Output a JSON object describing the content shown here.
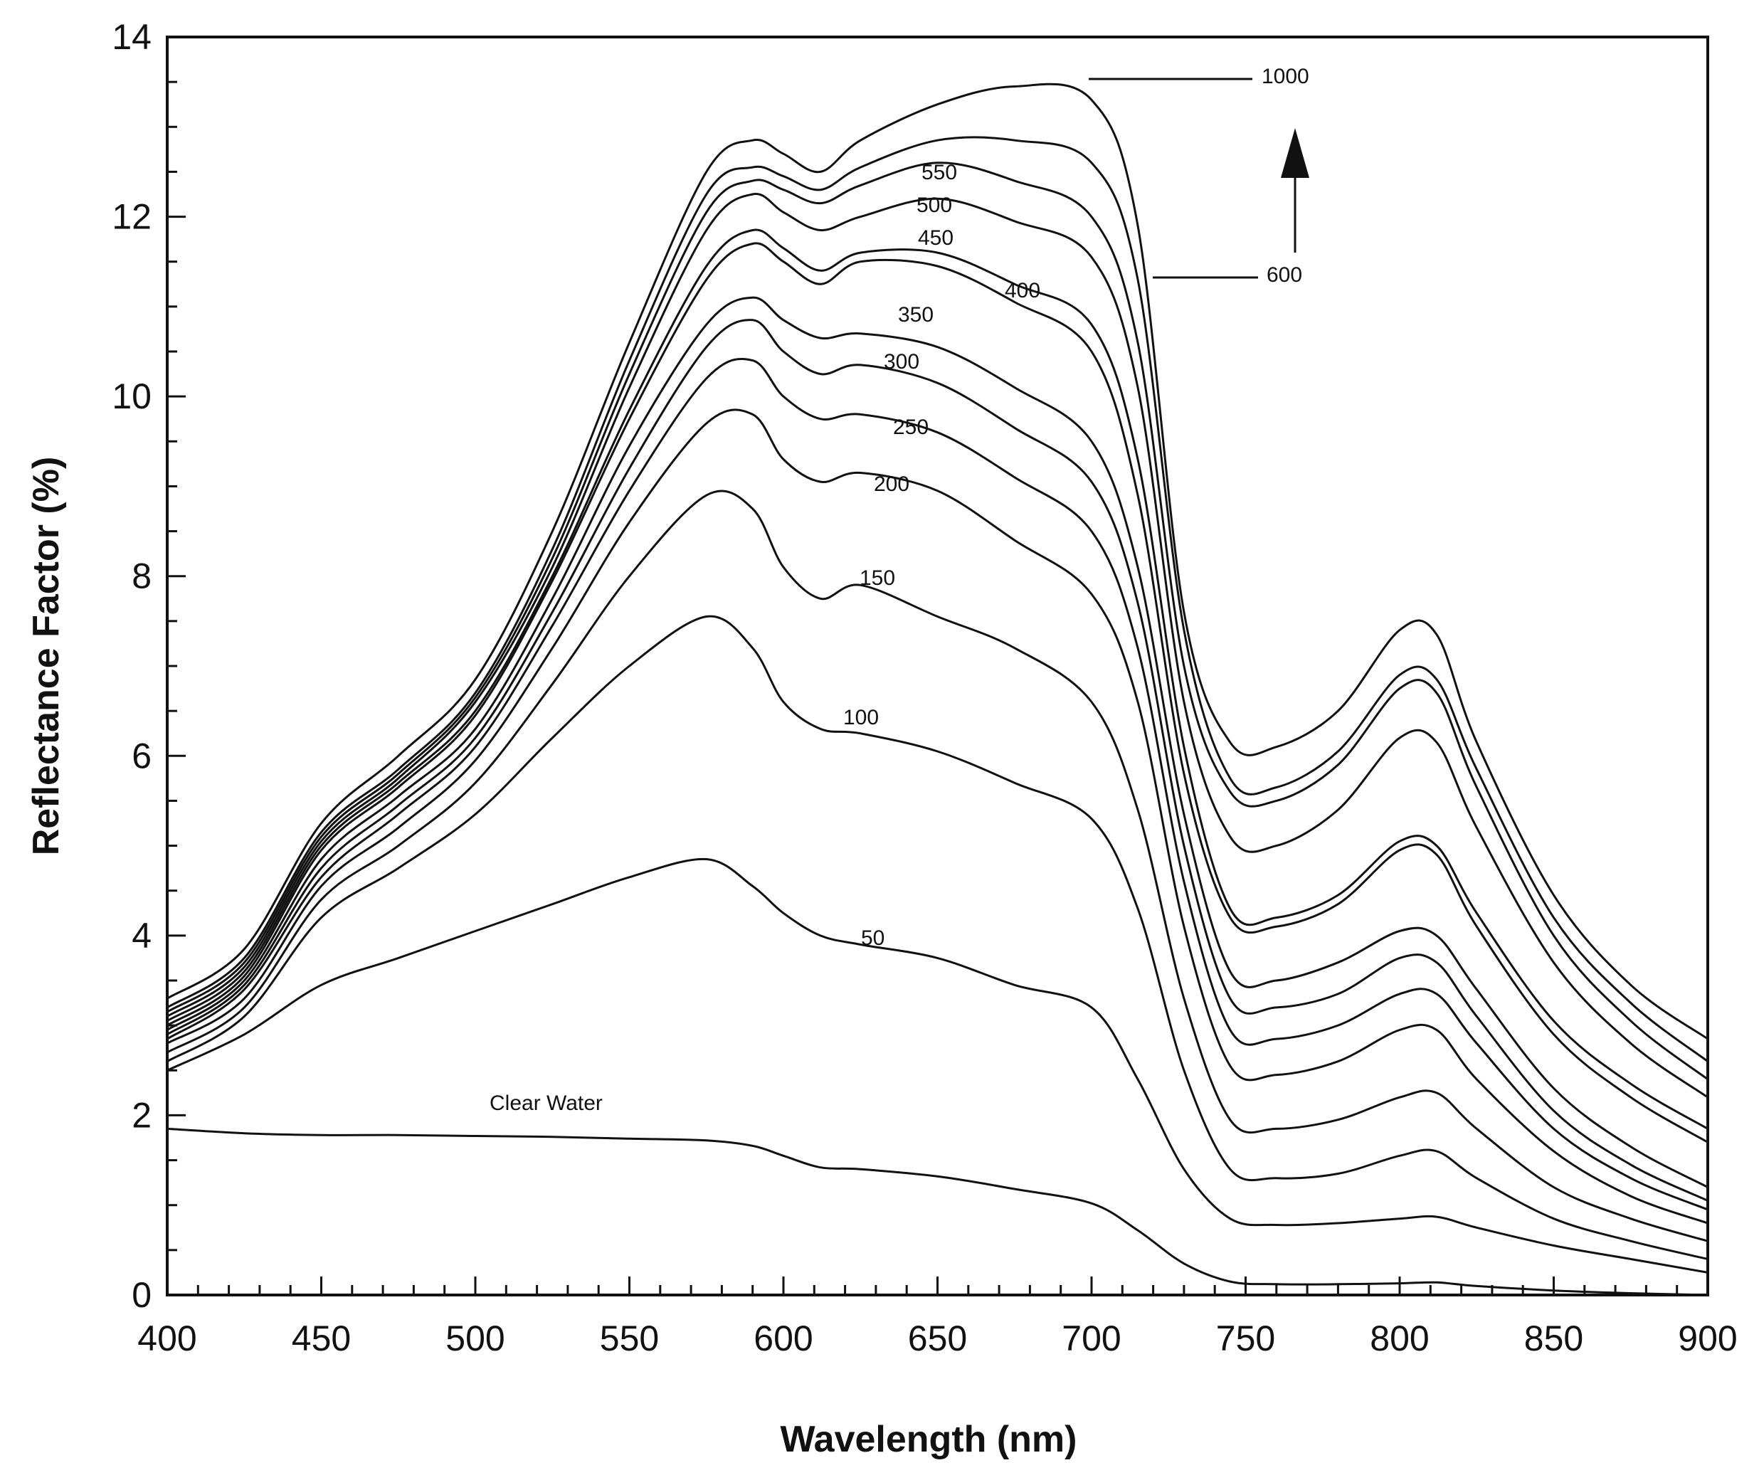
{
  "chart_data": {
    "type": "line",
    "title": "",
    "xlabel": "Wavelength (nm)",
    "ylabel": "Reflectance Factor (%)",
    "xlim": [
      400,
      900
    ],
    "ylim": [
      0,
      14
    ],
    "x_ticks": [
      400,
      450,
      500,
      550,
      600,
      650,
      700,
      750,
      800,
      850,
      900
    ],
    "y_ticks": [
      0,
      2,
      4,
      6,
      8,
      10,
      12,
      14
    ],
    "grid": false,
    "x": [
      400,
      425,
      450,
      475,
      500,
      525,
      550,
      575,
      590,
      600,
      612,
      625,
      650,
      675,
      700,
      715,
      730,
      745,
      760,
      780,
      800,
      812,
      825,
      850,
      875,
      900
    ],
    "series": [
      {
        "name": "Clear Water",
        "values": [
          1.85,
          1.8,
          1.78,
          1.78,
          1.77,
          1.76,
          1.74,
          1.72,
          1.66,
          1.55,
          1.42,
          1.4,
          1.32,
          1.18,
          1.02,
          0.72,
          0.35,
          0.15,
          0.12,
          0.12,
          0.13,
          0.14,
          0.1,
          0.05,
          0.02,
          0.0
        ]
      },
      {
        "name": "50",
        "values": [
          2.5,
          2.9,
          3.45,
          3.75,
          4.05,
          4.35,
          4.65,
          4.85,
          4.55,
          4.25,
          4.0,
          3.9,
          3.75,
          3.45,
          3.2,
          2.4,
          1.4,
          0.85,
          0.78,
          0.8,
          0.85,
          0.87,
          0.75,
          0.55,
          0.4,
          0.25
        ]
      },
      {
        "name": "100",
        "values": [
          2.6,
          3.1,
          4.2,
          4.75,
          5.35,
          6.2,
          7.0,
          7.55,
          7.2,
          6.6,
          6.3,
          6.25,
          6.05,
          5.7,
          5.3,
          4.3,
          2.5,
          1.4,
          1.3,
          1.35,
          1.55,
          1.6,
          1.3,
          0.85,
          0.6,
          0.4
        ]
      },
      {
        "name": "150",
        "values": [
          2.7,
          3.2,
          4.4,
          5.0,
          5.7,
          6.8,
          8.0,
          8.9,
          8.75,
          8.1,
          7.75,
          7.9,
          7.55,
          7.2,
          6.6,
          5.4,
          3.3,
          1.95,
          1.85,
          1.95,
          2.2,
          2.25,
          1.85,
          1.2,
          0.85,
          0.6
        ]
      },
      {
        "name": "200",
        "values": [
          2.8,
          3.3,
          4.55,
          5.2,
          5.95,
          7.2,
          8.6,
          9.7,
          9.8,
          9.3,
          9.05,
          9.15,
          8.95,
          8.4,
          7.8,
          6.6,
          4.1,
          2.55,
          2.45,
          2.6,
          2.95,
          2.95,
          2.4,
          1.6,
          1.1,
          0.8
        ]
      },
      {
        "name": "250",
        "values": [
          2.85,
          3.4,
          4.65,
          5.35,
          6.1,
          7.45,
          8.95,
          10.2,
          10.4,
          10.0,
          9.75,
          9.8,
          9.6,
          9.1,
          8.5,
          7.2,
          4.6,
          2.95,
          2.85,
          3.0,
          3.35,
          3.35,
          2.8,
          1.85,
          1.3,
          0.95
        ]
      },
      {
        "name": "300",
        "values": [
          2.9,
          3.45,
          4.75,
          5.45,
          6.2,
          7.6,
          9.2,
          10.55,
          10.85,
          10.5,
          10.25,
          10.35,
          10.15,
          9.65,
          9.05,
          7.7,
          5.0,
          3.3,
          3.2,
          3.35,
          3.75,
          3.7,
          3.1,
          2.05,
          1.45,
          1.05
        ]
      },
      {
        "name": "350",
        "values": [
          2.95,
          3.5,
          4.85,
          5.55,
          6.3,
          7.75,
          9.45,
          10.8,
          11.1,
          10.85,
          10.65,
          10.7,
          10.55,
          10.1,
          9.5,
          8.1,
          5.35,
          3.6,
          3.5,
          3.7,
          4.05,
          4.0,
          3.4,
          2.3,
          1.65,
          1.2
        ]
      },
      {
        "name": "400",
        "values": [
          3.0,
          3.55,
          4.95,
          5.65,
          6.45,
          7.95,
          9.75,
          11.3,
          11.7,
          11.5,
          11.25,
          11.5,
          11.45,
          11.05,
          10.5,
          8.9,
          5.8,
          4.2,
          4.1,
          4.35,
          4.95,
          4.9,
          4.1,
          2.9,
          2.2,
          1.7
        ]
      },
      {
        "name": "450",
        "values": [
          3.05,
          3.6,
          5.0,
          5.7,
          6.5,
          8.0,
          9.85,
          11.45,
          11.85,
          11.65,
          11.4,
          11.6,
          11.6,
          11.25,
          10.8,
          9.3,
          6.1,
          4.3,
          4.2,
          4.45,
          5.05,
          5.0,
          4.25,
          3.05,
          2.35,
          1.85
        ]
      },
      {
        "name": "500",
        "values": [
          3.1,
          3.65,
          5.05,
          5.75,
          6.6,
          8.1,
          10.1,
          11.85,
          12.25,
          12.05,
          11.85,
          12.0,
          12.2,
          11.95,
          11.55,
          10.1,
          6.6,
          5.1,
          5.0,
          5.4,
          6.2,
          6.15,
          5.2,
          3.7,
          2.8,
          2.2
        ]
      },
      {
        "name": "550",
        "values": [
          3.15,
          3.7,
          5.1,
          5.8,
          6.65,
          8.2,
          10.25,
          12.05,
          12.4,
          12.3,
          12.15,
          12.35,
          12.6,
          12.4,
          12.0,
          10.6,
          7.0,
          5.6,
          5.5,
          5.9,
          6.75,
          6.7,
          5.65,
          4.0,
          3.05,
          2.4
        ]
      },
      {
        "name": "600",
        "values": [
          3.2,
          3.75,
          5.15,
          5.85,
          6.7,
          8.3,
          10.4,
          12.25,
          12.55,
          12.45,
          12.3,
          12.55,
          12.85,
          12.85,
          12.6,
          11.3,
          7.4,
          5.75,
          5.65,
          6.05,
          6.9,
          6.85,
          5.85,
          4.2,
          3.25,
          2.6
        ]
      },
      {
        "name": "1000",
        "values": [
          3.3,
          3.85,
          5.25,
          6.0,
          6.85,
          8.5,
          10.6,
          12.5,
          12.85,
          12.7,
          12.5,
          12.85,
          13.25,
          13.45,
          13.3,
          11.9,
          7.6,
          6.15,
          6.1,
          6.5,
          7.4,
          7.35,
          6.15,
          4.45,
          3.45,
          2.85
        ]
      }
    ],
    "annotations": [
      {
        "text": "Clear Water"
      },
      {
        "text": "50"
      },
      {
        "text": "100"
      },
      {
        "text": "150"
      },
      {
        "text": "200"
      },
      {
        "text": "250"
      },
      {
        "text": "300"
      },
      {
        "text": "350"
      },
      {
        "text": "400"
      },
      {
        "text": "450"
      },
      {
        "text": "500"
      },
      {
        "text": "550"
      },
      {
        "text": "600"
      },
      {
        "text": "1000"
      }
    ],
    "arrow_direction": "up"
  }
}
